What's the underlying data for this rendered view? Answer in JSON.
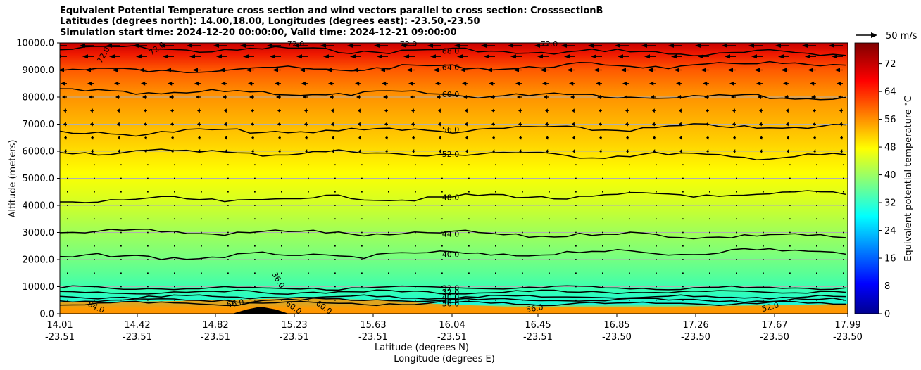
{
  "title_lines": [
    "Equivalent Potential Temperature cross section and wind vectors parallel to cross section: CrosssectionB",
    "Latitudes (degrees north): 14.00,18.00, Longitudes (degrees east): -23.50,-23.50",
    "Simulation start time: 2024-12-20 00:00:00, Valid time: 2024-12-21 09:00:00"
  ],
  "chart_data": {
    "type": "contourf",
    "title": "Equivalent Potential Temperature cross section and wind vectors parallel to cross section: CrosssectionB",
    "ylabel": "Altitude (meters)",
    "xlabel_lat": "Latitude (degrees N)",
    "xlabel_lon": "Longitude (degrees E)",
    "ylim": [
      0,
      10000
    ],
    "y_ticks": [
      "0.0",
      "1000.0",
      "2000.0",
      "3000.0",
      "4000.0",
      "5000.0",
      "6000.0",
      "7000.0",
      "8000.0",
      "9000.0",
      "10000.0"
    ],
    "y_tick_values": [
      0,
      1000,
      2000,
      3000,
      4000,
      5000,
      6000,
      7000,
      8000,
      9000,
      10000
    ],
    "x_ticks": [
      {
        "lat": "14.01",
        "lon": "-23.51"
      },
      {
        "lat": "14.42",
        "lon": "-23.51"
      },
      {
        "lat": "14.82",
        "lon": "-23.51"
      },
      {
        "lat": "15.23",
        "lon": "-23.51"
      },
      {
        "lat": "15.63",
        "lon": "-23.51"
      },
      {
        "lat": "16.04",
        "lon": "-23.51"
      },
      {
        "lat": "16.45",
        "lon": "-23.51"
      },
      {
        "lat": "16.85",
        "lon": "-23.50"
      },
      {
        "lat": "17.26",
        "lon": "-23.50"
      },
      {
        "lat": "17.67",
        "lon": "-23.50"
      },
      {
        "lat": "17.99",
        "lon": "-23.50"
      }
    ],
    "colorbar": {
      "label": "Equivalent potential temperature $^\\circ$C",
      "ticks": [
        "0",
        "8",
        "16",
        "24",
        "32",
        "40",
        "48",
        "56",
        "64",
        "72"
      ],
      "tick_values": [
        0,
        8,
        16,
        24,
        32,
        40,
        48,
        56,
        64,
        72
      ],
      "range": [
        0,
        78
      ],
      "colormap": "jet"
    },
    "contour_levels": [
      {
        "label": "68.0",
        "altitude": 9700
      },
      {
        "label": "64.0",
        "altitude": 9100
      },
      {
        "label": "60.0",
        "altitude": 8100
      },
      {
        "label": "56.0",
        "altitude": 6800
      },
      {
        "label": "52.0",
        "altitude": 5900
      },
      {
        "label": "48.0",
        "altitude": 4300
      },
      {
        "label": "44.0",
        "altitude": 2950
      },
      {
        "label": "40.0",
        "altitude": 2200
      },
      {
        "label": "32.0",
        "altitude": 950
      },
      {
        "label": "32.0",
        "altitude": 800
      },
      {
        "label": "40.0",
        "altitude": 620
      },
      {
        "label": "48.0",
        "altitude": 500
      },
      {
        "label": "56.0",
        "altitude": 380
      }
    ],
    "inline_labels": [
      "72.0",
      "72.0",
      "72.0",
      "72.0",
      "72.0",
      "64.0",
      "56.0",
      "60.0",
      "60.0",
      "36.0",
      "56.0",
      "52.0"
    ],
    "wind_reference": "50 m/s"
  }
}
